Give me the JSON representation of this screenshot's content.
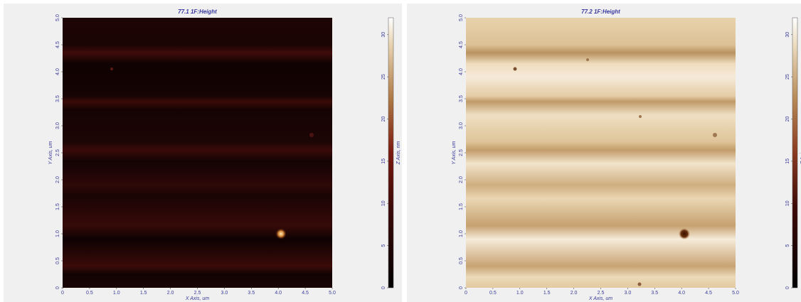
{
  "chart_data": [
    {
      "type": "image",
      "title": "77.1 1F:Height",
      "xlabel": "X Axis, um",
      "ylabel": "Y Axis, um",
      "zlabel": "Z Axis, nm",
      "xlim": [
        0,
        5
      ],
      "ylim": [
        0,
        5
      ],
      "zlim": [
        0,
        32
      ],
      "xticks": [
        0,
        0.5,
        {
          "value": 1,
          "label": "1.0"
        },
        1.5,
        {
          "value": 2,
          "label": "2.0"
        },
        2.5,
        {
          "value": 3,
          "label": "3.0"
        },
        3.5,
        {
          "value": 4,
          "label": "4.0"
        },
        4.5,
        {
          "value": 5,
          "label": "5.0"
        }
      ],
      "yticks": [
        0,
        0.5,
        {
          "value": 1,
          "label": "1.0"
        },
        1.5,
        {
          "value": 2,
          "label": "2.0"
        },
        2.5,
        {
          "value": 3,
          "label": "3.0"
        },
        3.5,
        {
          "value": 4,
          "label": "4.0"
        },
        4.5,
        {
          "value": 5,
          "label": "5.0"
        }
      ],
      "zticks": [
        0,
        5,
        10,
        15,
        20,
        25,
        30
      ]
    },
    {
      "type": "image",
      "title": "77.2 1F:Height",
      "xlabel": "X Axis, um",
      "ylabel": "Y Axis, um",
      "zlabel": "Z Axis, nm",
      "xlim": [
        0,
        5
      ],
      "ylim": [
        0,
        5
      ],
      "zlim": [
        0,
        32
      ],
      "xticks": [
        0,
        0.5,
        {
          "value": 1,
          "label": "1.0"
        },
        1.5,
        {
          "value": 2,
          "label": "2.0"
        },
        2.5,
        {
          "value": 3,
          "label": "3.0"
        },
        3.5,
        {
          "value": 4,
          "label": "4.0"
        },
        4.5,
        {
          "value": 5,
          "label": "5.0"
        }
      ],
      "yticks": [
        0,
        0.5,
        {
          "value": 1,
          "label": "1.0"
        },
        1.5,
        {
          "value": 2,
          "label": "2.0"
        },
        2.5,
        {
          "value": 3,
          "label": "3.0"
        },
        3.5,
        {
          "value": 4,
          "label": "4.0"
        },
        4.5,
        {
          "value": 5,
          "label": "5.0"
        }
      ],
      "zticks": [
        0,
        5,
        10,
        15,
        20,
        25,
        30
      ]
    }
  ]
}
